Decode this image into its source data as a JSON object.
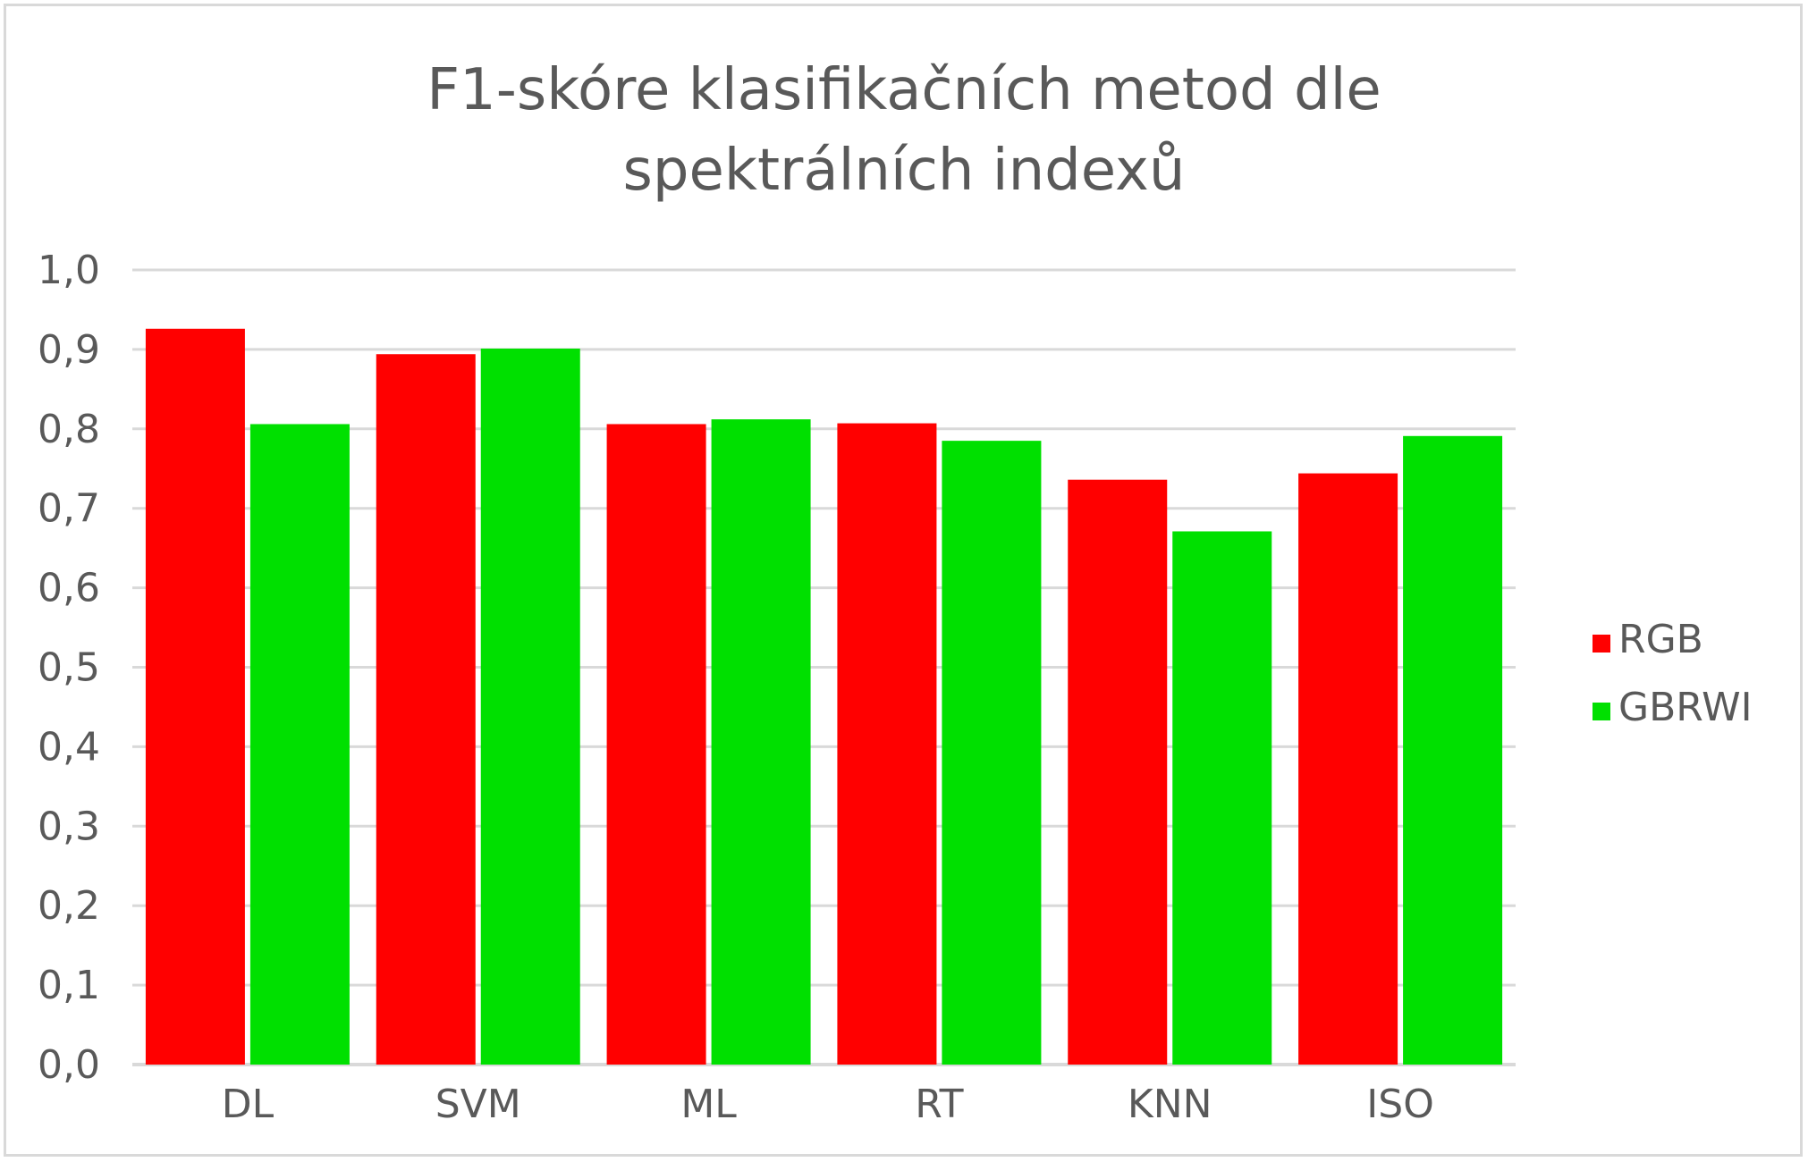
{
  "chart_data": {
    "type": "bar",
    "title_lines": [
      "F1-skóre klasifikačních metod dle",
      "spektrálních indexů"
    ],
    "categories": [
      "DL",
      "SVM",
      "ML",
      "RT",
      "KNN",
      "ISO"
    ],
    "series": [
      {
        "name": "RGB",
        "color": "#ff0000",
        "values": [
          0.926,
          0.894,
          0.806,
          0.807,
          0.736,
          0.744
        ]
      },
      {
        "name": "GBRWI",
        "color": "#00e000",
        "values": [
          0.806,
          0.901,
          0.812,
          0.785,
          0.671,
          0.791
        ]
      }
    ],
    "ylim": [
      0,
      1.0
    ],
    "yticks": [
      "0,0",
      "0,1",
      "0,2",
      "0,3",
      "0,4",
      "0,5",
      "0,6",
      "0,7",
      "0,8",
      "0,9",
      "1,0"
    ],
    "grid": true,
    "legend_position": "right"
  }
}
